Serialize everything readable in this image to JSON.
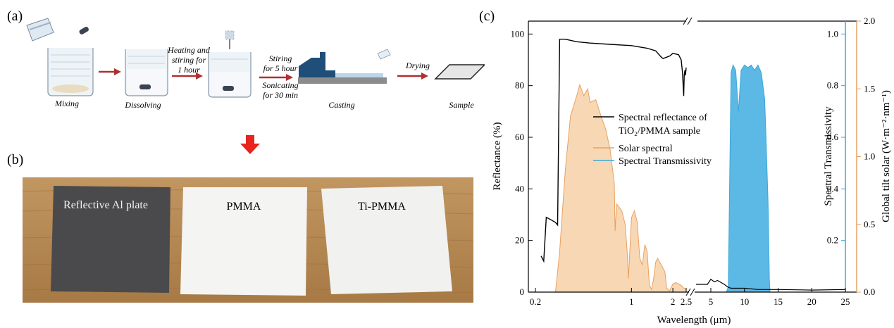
{
  "panel_a": {
    "label": "(a)",
    "steps": [
      {
        "name": "mixing",
        "label": "Mixing"
      },
      {
        "name": "dissolving",
        "label": "Dissolving"
      },
      {
        "name": "casting",
        "label": "Casting"
      },
      {
        "name": "sample",
        "label": "Sample"
      }
    ],
    "arrows": [
      {
        "name": "heating",
        "lines": [
          "Heating and",
          "stiring for",
          "1 hour"
        ]
      },
      {
        "name": "stiring",
        "lines": [
          "Stiring",
          "for 5 hour"
        ],
        "lines2": [
          "Sonicating",
          "for 30 min"
        ]
      },
      {
        "name": "drying",
        "lines": [
          "Drying"
        ]
      }
    ],
    "colors": {
      "arrow": "#b03030",
      "mold": "#1f4e79",
      "base": "#8c8c8c"
    }
  },
  "panel_b": {
    "label": "(b)",
    "samples": [
      {
        "name": "reflective-al-plate",
        "label": "Reflective  Al plate"
      },
      {
        "name": "pmma",
        "label": "PMMA"
      },
      {
        "name": "ti-pmma",
        "label": "Ti-PMMA"
      }
    ],
    "colors": {
      "wood": "#b88a55",
      "al": "#4a4a4c",
      "paper": "#f4f4f2"
    }
  },
  "panel_c": {
    "label": "(c)",
    "chart_data": {
      "type": "line",
      "xlabel": "Wavelength (μm)",
      "ylabel_left": "Reflectance (%)",
      "ylabel_right1": "Spectral Transmissivity",
      "ylabel_right2": "Global tilt solar (W·m⁻²·nm⁻¹)",
      "x_ticks_left": [
        "0.2",
        "1",
        "2",
        "2.5"
      ],
      "x_ticks_right": [
        "5",
        "10",
        "15",
        "20",
        "25"
      ],
      "y_ticks_left": [
        "0",
        "20",
        "40",
        "60",
        "80",
        "100"
      ],
      "y_ticks_right1": [
        "0.2",
        "0.4",
        "0.6",
        "0.8",
        "1.0"
      ],
      "y_ticks_right2": [
        "0.0",
        "0.5",
        "1.0",
        "1.5",
        "2.0"
      ],
      "ylim_left": [
        0,
        105
      ],
      "ylim_right1": [
        0,
        1.05
      ],
      "ylim_right2": [
        0,
        2.0
      ],
      "legend": {
        "placement": "center",
        "entries": [
          {
            "name": "reflectance",
            "lines": [
              "Spectral reflectance of",
              "TiO₂/PMMA sample"
            ],
            "color": "#000000"
          },
          {
            "name": "solar",
            "lines": [
              "Solar spectral"
            ],
            "color": "#e8a060"
          },
          {
            "name": "transmissivity",
            "lines": [
              "Spectral Transmissivity"
            ],
            "color": "#3aa9d8"
          }
        ]
      },
      "series": [
        {
          "name": "reflectance",
          "color": "#000000",
          "points": [
            [
              0.22,
              14
            ],
            [
              0.23,
              12
            ],
            [
              0.24,
              29
            ],
            [
              0.26,
              28
            ],
            [
              0.28,
              27
            ],
            [
              0.29,
              26
            ],
            [
              0.3,
              98
            ],
            [
              0.33,
              98
            ],
            [
              0.4,
              97
            ],
            [
              0.5,
              96.5
            ],
            [
              0.7,
              96
            ],
            [
              1.0,
              95.5
            ],
            [
              1.3,
              94.5
            ],
            [
              1.5,
              93.5
            ],
            [
              1.65,
              91
            ],
            [
              1.7,
              90.5
            ],
            [
              1.9,
              91.5
            ],
            [
              2.0,
              92.5
            ],
            [
              2.2,
              92
            ],
            [
              2.3,
              90
            ],
            [
              2.35,
              85
            ],
            [
              2.4,
              76
            ],
            [
              2.42,
              84
            ],
            [
              2.45,
              86
            ],
            [
              2.47,
              84
            ],
            [
              2.5,
              87
            ]
          ],
          "points_right": [
            [
              2.8,
              3
            ],
            [
              4.5,
              3
            ],
            [
              5.0,
              5
            ],
            [
              5.5,
              4
            ],
            [
              6,
              4.5
            ],
            [
              7,
              3
            ],
            [
              7.5,
              2
            ],
            [
              8,
              1.5
            ],
            [
              9,
              1.5
            ],
            [
              10,
              1.5
            ],
            [
              12,
              1
            ],
            [
              15,
              1
            ],
            [
              20,
              0.8
            ],
            [
              25,
              1
            ]
          ]
        },
        {
          "name": "solar",
          "color": "#e8a060",
          "fill": "#f8d8b4",
          "points": [
            [
              0.28,
              0
            ],
            [
              0.3,
              0.3
            ],
            [
              0.33,
              0.9
            ],
            [
              0.36,
              1.3
            ],
            [
              0.4,
              1.45
            ],
            [
              0.42,
              1.53
            ],
            [
              0.45,
              1.45
            ],
            [
              0.48,
              1.5
            ],
            [
              0.5,
              1.4
            ],
            [
              0.55,
              1.42
            ],
            [
              0.6,
              1.3
            ],
            [
              0.65,
              1.2
            ],
            [
              0.7,
              1.05
            ],
            [
              0.75,
              0.8
            ],
            [
              0.76,
              0.45
            ],
            [
              0.78,
              0.65
            ],
            [
              0.85,
              0.6
            ],
            [
              0.9,
              0.5
            ],
            [
              0.93,
              0.3
            ],
            [
              0.95,
              0.1
            ],
            [
              1.0,
              0.55
            ],
            [
              1.05,
              0.6
            ],
            [
              1.1,
              0.52
            ],
            [
              1.15,
              0.25
            ],
            [
              1.2,
              0.2
            ],
            [
              1.25,
              0.35
            ],
            [
              1.3,
              0.3
            ],
            [
              1.35,
              0.05
            ],
            [
              1.4,
              0.02
            ],
            [
              1.45,
              0.1
            ],
            [
              1.5,
              0.22
            ],
            [
              1.55,
              0.25
            ],
            [
              1.65,
              0.2
            ],
            [
              1.75,
              0.15
            ],
            [
              1.8,
              0.03
            ],
            [
              1.9,
              0.01
            ],
            [
              2.0,
              0.06
            ],
            [
              2.1,
              0.07
            ],
            [
              2.2,
              0.06
            ],
            [
              2.3,
              0.05
            ],
            [
              2.4,
              0.03
            ],
            [
              2.5,
              0.02
            ]
          ]
        },
        {
          "name": "transmissivity",
          "color": "#3aa9d8",
          "fill": "#5cb8e4",
          "points": [
            [
              7.3,
              0
            ],
            [
              7.6,
              0.02
            ],
            [
              8.0,
              0.85
            ],
            [
              8.3,
              0.88
            ],
            [
              8.7,
              0.86
            ],
            [
              9.1,
              0.7
            ],
            [
              9.5,
              0.86
            ],
            [
              10.0,
              0.88
            ],
            [
              10.5,
              0.87
            ],
            [
              11.0,
              0.88
            ],
            [
              11.5,
              0.86
            ],
            [
              12.0,
              0.88
            ],
            [
              12.5,
              0.85
            ],
            [
              13.0,
              0.75
            ],
            [
              13.2,
              0.6
            ],
            [
              13.5,
              0.35
            ],
            [
              13.7,
              0.05
            ],
            [
              13.8,
              0
            ]
          ]
        }
      ]
    }
  }
}
